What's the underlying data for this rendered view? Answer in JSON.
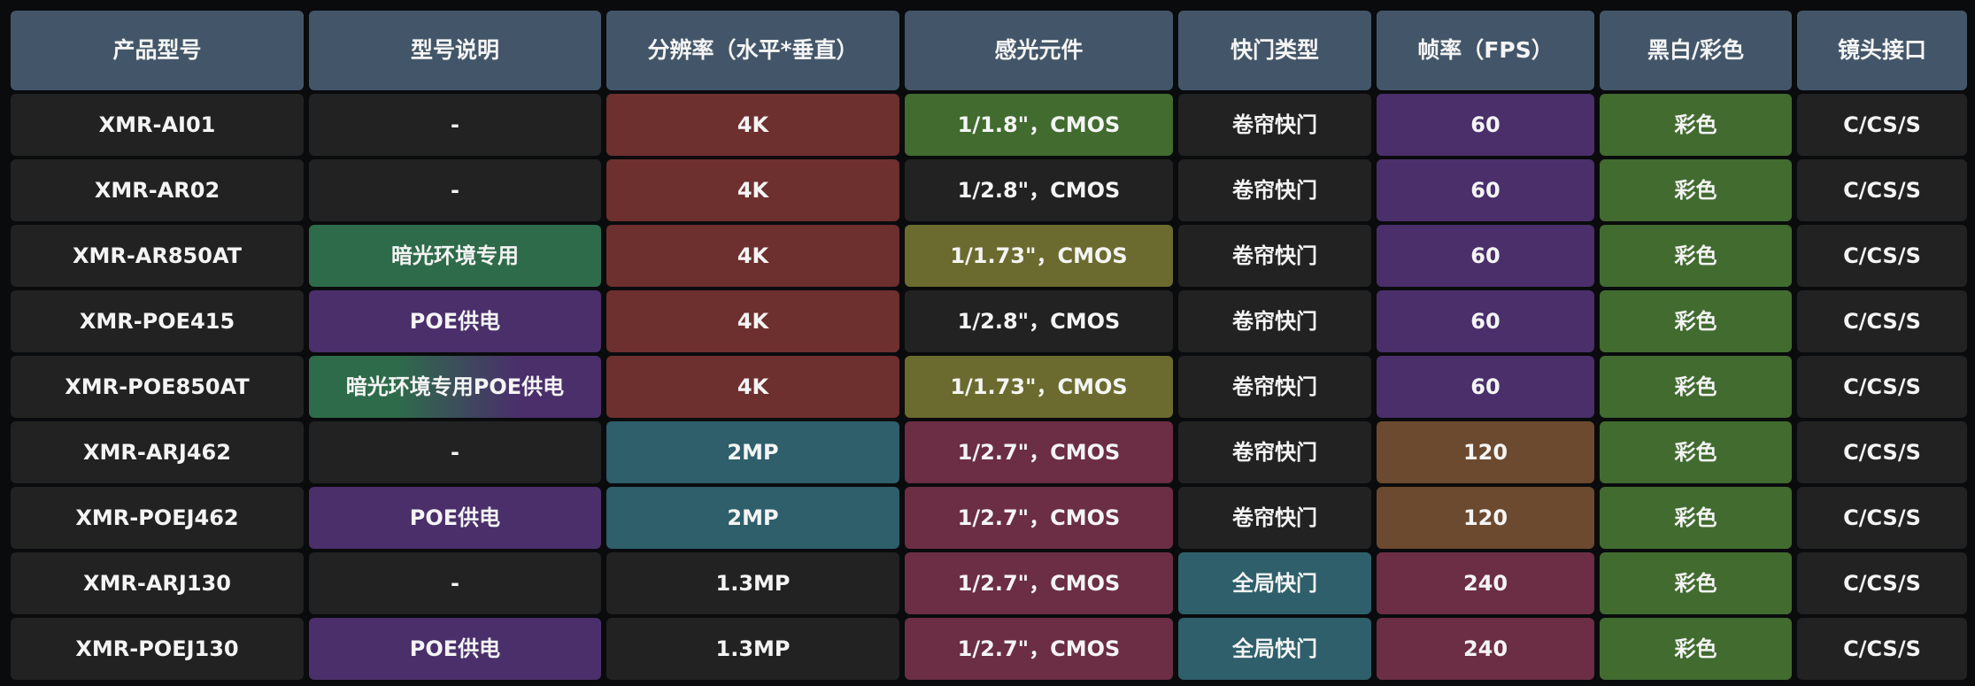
{
  "palette": {
    "header": "#435669",
    "dark": "#222222",
    "red": "#6e2f2f",
    "green": "#416b2f",
    "olive": "#6b6b2f",
    "purple": "#4a2f6b",
    "teal-green": "#2e6b4a",
    "teal": "#2e5f6b",
    "wine": "#6b2e44",
    "brown": "#6b4a2f",
    "green-purple": "linear-gradient(90deg,#2e6b4a 0%,#2e6b4a 30%,#4a2f6b 72%,#4a2f6b 100%)"
  },
  "headers": [
    "产品型号",
    "型号说明",
    "分辨率（水平*垂直）",
    "感光元件",
    "快门类型",
    "帧率（FPS）",
    "黑白/彩色",
    "镜头接口"
  ],
  "rows": [
    [
      {
        "t": "XMR-AI01",
        "c": "dark"
      },
      {
        "t": "-",
        "c": "dark"
      },
      {
        "t": "4K",
        "c": "red"
      },
      {
        "t": "1/1.8\"，CMOS",
        "c": "green"
      },
      {
        "t": "卷帘快门",
        "c": "dark"
      },
      {
        "t": "60",
        "c": "purple"
      },
      {
        "t": "彩色",
        "c": "green"
      },
      {
        "t": "C/CS/S",
        "c": "dark"
      }
    ],
    [
      {
        "t": "XMR-AR02",
        "c": "dark"
      },
      {
        "t": "-",
        "c": "dark"
      },
      {
        "t": "4K",
        "c": "red"
      },
      {
        "t": "1/2.8\"，CMOS",
        "c": "dark"
      },
      {
        "t": "卷帘快门",
        "c": "dark"
      },
      {
        "t": "60",
        "c": "purple"
      },
      {
        "t": "彩色",
        "c": "green"
      },
      {
        "t": "C/CS/S",
        "c": "dark"
      }
    ],
    [
      {
        "t": "XMR-AR850AT",
        "c": "dark"
      },
      {
        "t": "暗光环境专用",
        "c": "teal-green"
      },
      {
        "t": "4K",
        "c": "red"
      },
      {
        "t": "1/1.73\"，CMOS",
        "c": "olive"
      },
      {
        "t": "卷帘快门",
        "c": "dark"
      },
      {
        "t": "60",
        "c": "purple"
      },
      {
        "t": "彩色",
        "c": "green"
      },
      {
        "t": "C/CS/S",
        "c": "dark"
      }
    ],
    [
      {
        "t": "XMR-POE415",
        "c": "dark"
      },
      {
        "t": "POE供电",
        "c": "purple"
      },
      {
        "t": "4K",
        "c": "red"
      },
      {
        "t": "1/2.8\"，CMOS",
        "c": "dark"
      },
      {
        "t": "卷帘快门",
        "c": "dark"
      },
      {
        "t": "60",
        "c": "purple"
      },
      {
        "t": "彩色",
        "c": "green"
      },
      {
        "t": "C/CS/S",
        "c": "dark"
      }
    ],
    [
      {
        "t": "XMR-POE850AT",
        "c": "dark"
      },
      {
        "t": "暗光环境专用POE供电",
        "c": "green-purple"
      },
      {
        "t": "4K",
        "c": "red"
      },
      {
        "t": "1/1.73\"，CMOS",
        "c": "olive"
      },
      {
        "t": "卷帘快门",
        "c": "dark"
      },
      {
        "t": "60",
        "c": "purple"
      },
      {
        "t": "彩色",
        "c": "green"
      },
      {
        "t": "C/CS/S",
        "c": "dark"
      }
    ],
    [
      {
        "t": "XMR-ARJ462",
        "c": "dark"
      },
      {
        "t": "-",
        "c": "dark"
      },
      {
        "t": "2MP",
        "c": "teal"
      },
      {
        "t": "1/2.7\"，CMOS",
        "c": "wine"
      },
      {
        "t": "卷帘快门",
        "c": "dark"
      },
      {
        "t": "120",
        "c": "brown"
      },
      {
        "t": "彩色",
        "c": "green"
      },
      {
        "t": "C/CS/S",
        "c": "dark"
      }
    ],
    [
      {
        "t": "XMR-POEJ462",
        "c": "dark"
      },
      {
        "t": "POE供电",
        "c": "purple"
      },
      {
        "t": "2MP",
        "c": "teal"
      },
      {
        "t": "1/2.7\"，CMOS",
        "c": "wine"
      },
      {
        "t": "卷帘快门",
        "c": "dark"
      },
      {
        "t": "120",
        "c": "brown"
      },
      {
        "t": "彩色",
        "c": "green"
      },
      {
        "t": "C/CS/S",
        "c": "dark"
      }
    ],
    [
      {
        "t": "XMR-ARJ130",
        "c": "dark"
      },
      {
        "t": "-",
        "c": "dark"
      },
      {
        "t": "1.3MP",
        "c": "dark"
      },
      {
        "t": "1/2.7\"，CMOS",
        "c": "wine"
      },
      {
        "t": "全局快门",
        "c": "teal"
      },
      {
        "t": "240",
        "c": "wine"
      },
      {
        "t": "彩色",
        "c": "green"
      },
      {
        "t": "C/CS/S",
        "c": "dark"
      }
    ],
    [
      {
        "t": "XMR-POEJ130",
        "c": "dark"
      },
      {
        "t": "POE供电",
        "c": "purple"
      },
      {
        "t": "1.3MP",
        "c": "dark"
      },
      {
        "t": "1/2.7\"，CMOS",
        "c": "wine"
      },
      {
        "t": "全局快门",
        "c": "teal"
      },
      {
        "t": "240",
        "c": "wine"
      },
      {
        "t": "彩色",
        "c": "green"
      },
      {
        "t": "C/CS/S",
        "c": "dark"
      }
    ]
  ]
}
